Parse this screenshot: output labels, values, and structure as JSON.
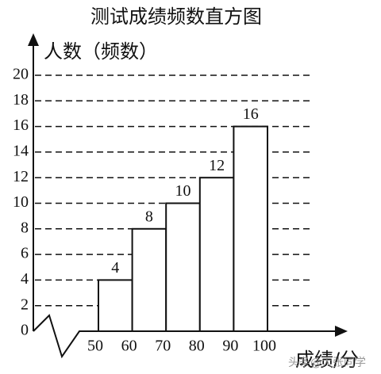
{
  "chart_data": {
    "type": "histogram",
    "title": "测试成绩频数直方图",
    "y_label": "人数（频数）",
    "x_label": "成绩/分",
    "watermark": "头条@大张同学",
    "bins": [
      50,
      60,
      70,
      80,
      90,
      100
    ],
    "values": [
      4,
      8,
      10,
      12,
      16
    ],
    "color": "#ffffff",
    "xlim": [
      50,
      100
    ],
    "xticks": [
      50,
      60,
      70,
      80,
      90,
      100
    ],
    "ylim": [
      0,
      20
    ],
    "yticks": [
      0,
      2,
      4,
      6,
      8,
      10,
      12,
      14,
      16,
      18,
      20
    ],
    "grid": true
  }
}
